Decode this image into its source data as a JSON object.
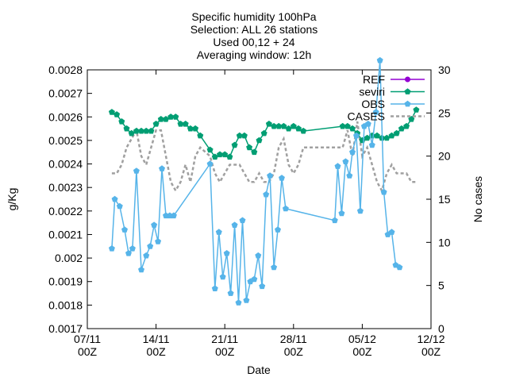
{
  "chart_data": {
    "type": "line",
    "title_lines": [
      "Specific humidity 100hPa",
      "Selection: ALL      26 stations",
      "Used 00,12 + 24",
      "Averaging window: 12h"
    ],
    "xlabel": "Date",
    "ylabel": "g/Kg",
    "y2label": "No cases",
    "x_range_days": [
      0,
      35
    ],
    "x_ticks": [
      {
        "day": 0,
        "label1": "07/11",
        "label2": "00Z"
      },
      {
        "day": 7,
        "label1": "14/11",
        "label2": "00Z"
      },
      {
        "day": 14,
        "label1": "21/11",
        "label2": "00Z"
      },
      {
        "day": 21,
        "label1": "28/11",
        "label2": "00Z"
      },
      {
        "day": 28,
        "label1": "05/12",
        "label2": "00Z"
      },
      {
        "day": 35,
        "label1": "12/12",
        "label2": "00Z"
      }
    ],
    "ylim": [
      0.0017,
      0.0028
    ],
    "y_ticks": [
      "0.0017",
      "0.0018",
      "0.0019",
      "0.002",
      "0.0021",
      "0.0022",
      "0.0023",
      "0.0024",
      "0.0025",
      "0.0026",
      "0.0027",
      "0.0028"
    ],
    "y2lim": [
      0,
      30
    ],
    "y2_ticks": [
      "0",
      "5",
      "10",
      "15",
      "20",
      "25",
      "30"
    ],
    "legend_position": "top-right",
    "series": [
      {
        "name": "REF",
        "color": "#9400d3",
        "axis": "y1",
        "marker": "circle",
        "points": []
      },
      {
        "name": "seviri",
        "color": "#009e73",
        "axis": "y1",
        "marker": "pentagon",
        "points": [
          [
            2.5,
            0.00262
          ],
          [
            3.0,
            0.00261
          ],
          [
            3.5,
            0.00258
          ],
          [
            4.0,
            0.00255
          ],
          [
            4.5,
            0.00253
          ],
          [
            5.0,
            0.00254
          ],
          [
            5.5,
            0.00254
          ],
          [
            6.0,
            0.00254
          ],
          [
            6.5,
            0.00254
          ],
          [
            7.0,
            0.00257
          ],
          [
            7.5,
            0.00259
          ],
          [
            8.0,
            0.00259
          ],
          [
            8.5,
            0.0026
          ],
          [
            9.0,
            0.0026
          ],
          [
            9.5,
            0.00257
          ],
          [
            10.0,
            0.00257
          ],
          [
            10.5,
            0.00255
          ],
          [
            11.0,
            0.00255
          ],
          [
            11.5,
            0.00252
          ],
          [
            12.5,
            0.00246
          ],
          [
            13.0,
            0.00243
          ],
          [
            13.5,
            0.00244
          ],
          [
            14.0,
            0.00244
          ],
          [
            14.5,
            0.00243
          ],
          [
            15.0,
            0.00248
          ],
          [
            15.5,
            0.00252
          ],
          [
            16.0,
            0.00252
          ],
          [
            16.5,
            0.00247
          ],
          [
            17.0,
            0.00245
          ],
          [
            17.5,
            0.0025
          ],
          [
            18.0,
            0.00253
          ],
          [
            18.5,
            0.00257
          ],
          [
            19.0,
            0.00256
          ],
          [
            19.5,
            0.00256
          ],
          [
            20.0,
            0.00256
          ],
          [
            20.5,
            0.00255
          ],
          [
            21.0,
            0.00256
          ],
          [
            21.5,
            0.00255
          ],
          [
            22.0,
            0.00254
          ],
          [
            26.0,
            0.00256
          ],
          [
            26.5,
            0.00256
          ],
          [
            27.0,
            0.00255
          ],
          [
            27.5,
            0.00253
          ],
          [
            28.0,
            0.0025
          ],
          [
            28.5,
            0.00251
          ],
          [
            29.0,
            0.00252
          ],
          [
            29.5,
            0.00252
          ],
          [
            30.0,
            0.00251
          ],
          [
            30.5,
            0.00251
          ],
          [
            31.0,
            0.00252
          ],
          [
            31.5,
            0.00253
          ],
          [
            32.0,
            0.00255
          ],
          [
            32.5,
            0.00256
          ],
          [
            33.0,
            0.00259
          ],
          [
            33.5,
            0.00263
          ]
        ]
      },
      {
        "name": "OBS",
        "color": "#56b4e9",
        "axis": "y1",
        "marker": "pentagon",
        "points": [
          [
            2.5,
            0.00204
          ],
          [
            2.8,
            0.00225
          ],
          [
            3.3,
            0.00222
          ],
          [
            3.8,
            0.00212
          ],
          [
            4.2,
            0.00202
          ],
          [
            4.6,
            0.00204
          ],
          [
            5.0,
            0.00237
          ],
          [
            5.5,
            0.00195
          ],
          [
            6.0,
            0.00201
          ],
          [
            6.4,
            0.00205
          ],
          [
            6.8,
            0.00214
          ],
          [
            7.2,
            0.00207
          ],
          [
            7.6,
            0.00238
          ],
          [
            8.0,
            0.00218
          ],
          [
            8.4,
            0.00218
          ],
          [
            8.8,
            0.00218
          ],
          [
            12.5,
            0.0024
          ],
          [
            13.0,
            0.00187
          ],
          [
            13.4,
            0.00211
          ],
          [
            13.8,
            0.00192
          ],
          [
            14.2,
            0.00202
          ],
          [
            14.6,
            0.00185
          ],
          [
            15.0,
            0.00214
          ],
          [
            15.4,
            0.00181
          ],
          [
            15.8,
            0.00216
          ],
          [
            16.2,
            0.00182
          ],
          [
            16.6,
            0.0019
          ],
          [
            17.0,
            0.00191
          ],
          [
            17.4,
            0.00201
          ],
          [
            17.8,
            0.00188
          ],
          [
            18.2,
            0.00227
          ],
          [
            18.6,
            0.00235
          ],
          [
            19.0,
            0.00196
          ],
          [
            19.4,
            0.00212
          ],
          [
            19.8,
            0.00234
          ],
          [
            20.2,
            0.00221
          ],
          [
            25.2,
            0.00216
          ],
          [
            25.5,
            0.00239
          ],
          [
            25.9,
            0.00219
          ],
          [
            26.3,
            0.00241
          ],
          [
            26.7,
            0.00235
          ],
          [
            27.0,
            0.00245
          ],
          [
            27.4,
            0.00252
          ],
          [
            27.8,
            0.0022
          ],
          [
            28.2,
            0.00256
          ],
          [
            28.6,
            0.00257
          ],
          [
            29.0,
            0.00248
          ],
          [
            29.4,
            0.00262
          ],
          [
            29.8,
            0.00284
          ],
          [
            30.2,
            0.00228
          ],
          [
            30.6,
            0.0021
          ],
          [
            31.0,
            0.00211
          ],
          [
            31.4,
            0.00197
          ],
          [
            31.8,
            0.00196
          ]
        ]
      },
      {
        "name": "CASES",
        "color": "#a0a0a0",
        "axis": "y2",
        "dash": true,
        "points": [
          [
            2.5,
            18
          ],
          [
            3.0,
            18
          ],
          [
            3.5,
            19
          ],
          [
            4.0,
            21
          ],
          [
            4.5,
            22
          ],
          [
            5.0,
            23
          ],
          [
            5.5,
            20
          ],
          [
            6.0,
            19
          ],
          [
            6.5,
            21
          ],
          [
            7.0,
            23
          ],
          [
            7.5,
            23
          ],
          [
            8.0,
            20
          ],
          [
            8.5,
            17
          ],
          [
            9.0,
            16
          ],
          [
            9.5,
            17
          ],
          [
            10.0,
            19
          ],
          [
            10.5,
            17
          ],
          [
            11.0,
            20
          ],
          [
            11.5,
            21
          ],
          [
            12.5,
            20
          ],
          [
            13.0,
            18
          ],
          [
            13.5,
            17
          ],
          [
            14.0,
            18
          ],
          [
            14.5,
            19
          ],
          [
            15.0,
            19
          ],
          [
            15.5,
            19
          ],
          [
            16.0,
            18
          ],
          [
            16.5,
            17
          ],
          [
            17.0,
            17
          ],
          [
            17.5,
            18
          ],
          [
            18.0,
            17
          ],
          [
            18.5,
            17
          ],
          [
            19.0,
            18
          ],
          [
            19.5,
            21
          ],
          [
            20.0,
            22
          ],
          [
            20.5,
            19
          ],
          [
            21.0,
            18
          ],
          [
            21.5,
            19
          ],
          [
            22.0,
            21
          ],
          [
            26.0,
            21
          ],
          [
            26.5,
            23
          ],
          [
            27.0,
            20
          ],
          [
            27.5,
            24
          ],
          [
            28.0,
            20
          ],
          [
            28.5,
            21
          ],
          [
            29.0,
            19
          ],
          [
            29.5,
            17
          ],
          [
            30.0,
            16
          ],
          [
            30.5,
            18
          ],
          [
            31.0,
            19
          ],
          [
            31.5,
            18
          ],
          [
            32.0,
            18
          ],
          [
            32.5,
            18
          ],
          [
            33.0,
            17
          ],
          [
            33.5,
            17
          ]
        ]
      }
    ]
  }
}
